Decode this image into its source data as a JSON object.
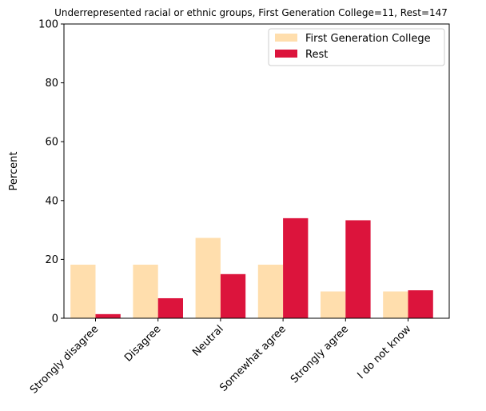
{
  "chart_data": {
    "type": "bar",
    "title": "Underrepresented racial or ethnic groups, First Generation College=11, Rest=147",
    "xlabel": "",
    "ylabel": "Percent",
    "ylim": [
      0,
      100
    ],
    "yticks": [
      0,
      20,
      40,
      60,
      80,
      100
    ],
    "categories": [
      "Strongly disagree",
      "Disagree",
      "Neutral",
      "Somewhat agree",
      "Strongly agree",
      "I do not know"
    ],
    "series": [
      {
        "name": "First Generation College",
        "color": "#ffdead",
        "values": [
          18.2,
          18.2,
          27.3,
          18.2,
          9.1,
          9.1
        ]
      },
      {
        "name": "Rest",
        "color": "#dc143c",
        "values": [
          1.4,
          6.8,
          15.0,
          34.0,
          33.3,
          9.5
        ]
      }
    ],
    "legend_position": "top-right",
    "grid": false
  }
}
